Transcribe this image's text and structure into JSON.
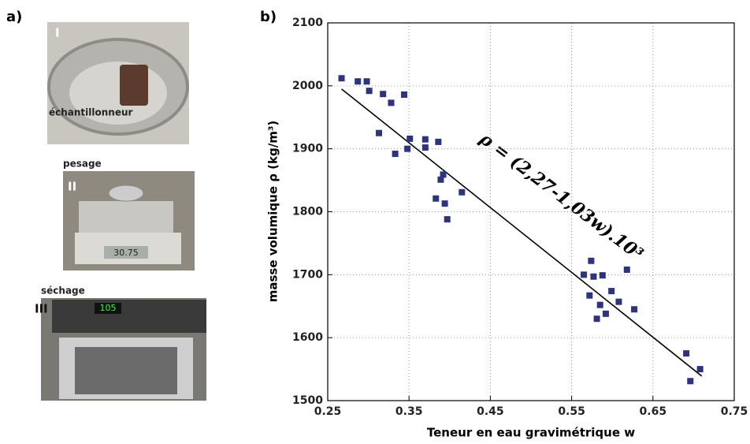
{
  "panel_a": {
    "label": "a)",
    "photos": [
      {
        "label": "I",
        "caption": "échantillonneur"
      },
      {
        "label": "II",
        "caption": "pesage",
        "display": "30.75"
      },
      {
        "label": "III",
        "caption": "séchage",
        "display": "105"
      }
    ]
  },
  "chart_data": {
    "type": "scatter",
    "panel_label": "b)",
    "x_label": "Teneur en eau gravimétrique w",
    "y_label": "masse volumique ρ   (kg/m³)",
    "annotation": "ρ = (2,27-1,03w).10³",
    "color": "#2e3380",
    "x": [
      0.267,
      0.287,
      0.298,
      0.301,
      0.318,
      0.328,
      0.344,
      0.313,
      0.333,
      0.348,
      0.351,
      0.37,
      0.37,
      0.386,
      0.389,
      0.392,
      0.383,
      0.394,
      0.397,
      0.415,
      0.565,
      0.574,
      0.577,
      0.572,
      0.588,
      0.599,
      0.585,
      0.581,
      0.592,
      0.608,
      0.618,
      0.627,
      0.691,
      0.696,
      0.708
    ],
    "values": [
      2012,
      2007,
      2007,
      1992,
      1987,
      1973,
      1986,
      1925,
      1892,
      1900,
      1916,
      1915,
      1902,
      1911,
      1851,
      1859,
      1821,
      1813,
      1788,
      1831,
      1700,
      1722,
      1697,
      1667,
      1699,
      1674,
      1652,
      1630,
      1638,
      1657,
      1708,
      1645,
      1575,
      1531,
      1550
    ],
    "fit_line": {
      "x": [
        0.267,
        0.71
      ],
      "values": [
        1995,
        1539
      ],
      "color": "#000000"
    },
    "xlim": [
      0.25,
      0.75
    ],
    "xticks": [
      0.25,
      0.35,
      0.45,
      0.55,
      0.65,
      0.75
    ],
    "ylim": [
      1500,
      2100
    ],
    "yticks": [
      1500,
      1600,
      1700,
      1800,
      1900,
      2000,
      2100
    ],
    "grid": true
  }
}
